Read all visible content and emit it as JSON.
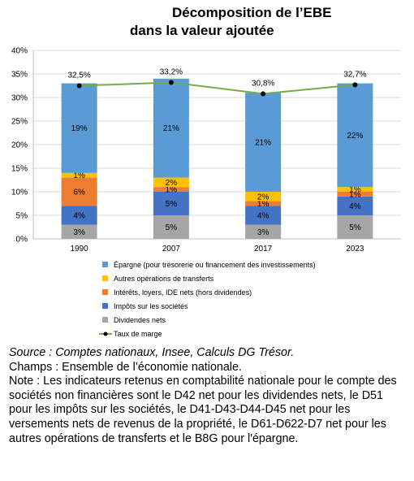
{
  "title_line1": "Décomposition de l’EBE",
  "title_line2": "dans la valeur ajoutée",
  "chart_data": {
    "type": "bar",
    "stacked": true,
    "categories": [
      "1990",
      "2007",
      "2017",
      "2023"
    ],
    "ylim": [
      0,
      40
    ],
    "yticks": [
      "0%",
      "5%",
      "10%",
      "15%",
      "20%",
      "25%",
      "30%",
      "35%",
      "40%"
    ],
    "series": [
      {
        "name": "Dividendes nets",
        "color": "#a6a6a6",
        "values": [
          3,
          5,
          3,
          5
        ],
        "labels": [
          "3%",
          "5%",
          "3%",
          "5%"
        ]
      },
      {
        "name": "Impôts sur les sociétés",
        "color": "#4472c4",
        "values": [
          4,
          5,
          4,
          4
        ],
        "labels": [
          "4%",
          "5%",
          "4%",
          "4%"
        ]
      },
      {
        "name": "Intérêts, loyers, IDE nets (hors dividendes)",
        "color": "#ed7d31",
        "values": [
          6,
          1,
          1,
          1
        ],
        "labels": [
          "6%",
          "1%",
          "1%",
          "1%"
        ]
      },
      {
        "name": "Autres opérations de transferts",
        "color": "#ffc000",
        "values": [
          1,
          2,
          2,
          1
        ],
        "labels": [
          "1%",
          "2%",
          "2%",
          "1%"
        ]
      },
      {
        "name": "Épargne (pour trésorerie ou financement des investissements)",
        "color": "#5b9bd5",
        "values": [
          19,
          21,
          21,
          22
        ],
        "labels": [
          "19%",
          "21%",
          "21%",
          "22%"
        ]
      }
    ],
    "line": {
      "name": "Taux de marge",
      "color": "#70ad47",
      "values": [
        32.5,
        33.2,
        30.8,
        32.7
      ],
      "labels": [
        "32,5%",
        "33,2%",
        "30,8%",
        "32,7%"
      ]
    },
    "legend_order": [
      "Épargne (pour trésorerie ou financement des investissements)",
      "Autres opérations de transferts",
      "Intérêts, loyers, IDE nets (hors dividendes)",
      "Impôts sur les sociétés",
      "Dividendes nets",
      "Taux de marge"
    ],
    "legend_position": "bottom",
    "grid": true
  },
  "source": "Source : Comptes nationaux, Insee, Calculs DG Trésor.",
  "champs": "Champs : Ensemble de l’économie nationale.",
  "note": "Note : Les indicateurs retenus en comptabilité nationale pour le compte des sociétés non financières sont le D42 net pour les dividendes nets, le D51 pour les impôts sur les sociétés, le D41-D43-D44-D45 net pour les versements nets de revenus de la propriété, le D61-D622-D7 net pour les autres opérations de transferts et le B8G pour l'épargne."
}
